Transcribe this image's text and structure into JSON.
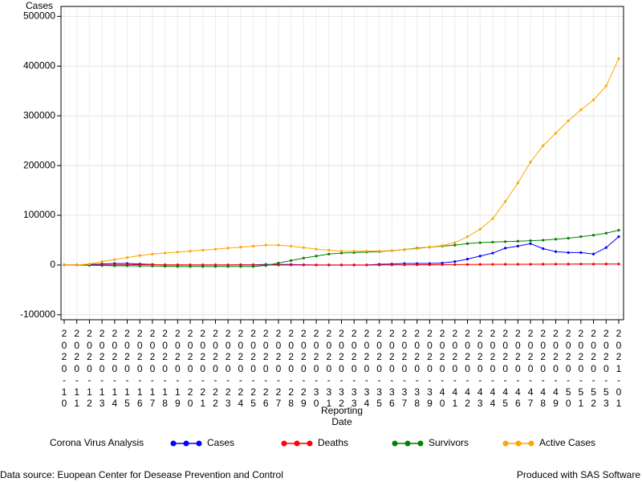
{
  "chart_data": {
    "type": "line",
    "ylabel": "Cases",
    "xlabel": "Reporting Date",
    "legend_title": "Corona Virus Analysis",
    "footnote_left": "Data source: Euopean Center for Desease Prevention and Control",
    "footnote_right": "Produced with SAS Software",
    "categories": [
      "2020-10",
      "2020-11",
      "2020-12",
      "2020-13",
      "2020-14",
      "2020-15",
      "2020-16",
      "2020-17",
      "2020-18",
      "2020-19",
      "2020-20",
      "2020-21",
      "2020-22",
      "2020-23",
      "2020-24",
      "2020-25",
      "2020-26",
      "2020-27",
      "2020-28",
      "2020-29",
      "2020-30",
      "2020-31",
      "2020-32",
      "2020-33",
      "2020-34",
      "2020-35",
      "2020-36",
      "2020-37",
      "2020-38",
      "2020-39",
      "2020-40",
      "2020-41",
      "2020-42",
      "2020-43",
      "2020-44",
      "2020-45",
      "2020-46",
      "2020-47",
      "2020-48",
      "2020-49",
      "2020-50",
      "2020-51",
      "2020-52",
      "2020-53",
      "2021-01"
    ],
    "series": [
      {
        "name": "Cases",
        "color": "#0000ff",
        "values": [
          0,
          0,
          1000,
          2000,
          3000,
          3000,
          2000,
          1000,
          0,
          0,
          0,
          0,
          0,
          0,
          500,
          500,
          1000,
          1000,
          1000,
          500,
          0,
          0,
          0,
          0,
          0,
          1500,
          2000,
          3000,
          3000,
          3000,
          4000,
          7000,
          12000,
          18000,
          24000,
          34000,
          38000,
          43000,
          33000,
          27000,
          25000,
          25000,
          22000,
          35000,
          57000
        ]
      },
      {
        "name": "Deaths",
        "color": "#ff0000",
        "values": [
          0,
          0,
          0,
          100,
          300,
          500,
          600,
          600,
          500,
          400,
          300,
          200,
          200,
          200,
          200,
          100,
          100,
          100,
          100,
          100,
          100,
          100,
          100,
          100,
          100,
          100,
          200,
          300,
          400,
          500,
          600,
          800,
          1000,
          1200,
          1400,
          1500,
          1500,
          1600,
          1700,
          1800,
          1900,
          2000,
          2000,
          2100,
          2200
        ]
      },
      {
        "name": "Survivors",
        "color": "#008000",
        "values": [
          0,
          0,
          -500,
          -1000,
          -1500,
          -1500,
          -2000,
          -2000,
          -2500,
          -3000,
          -3000,
          -3000,
          -3000,
          -3000,
          -3000,
          -3000,
          -1000,
          4000,
          9000,
          14000,
          18000,
          22000,
          24000,
          25000,
          26000,
          27000,
          29000,
          31000,
          34000,
          36000,
          38000,
          40000,
          43000,
          45000,
          46000,
          47000,
          48000,
          49000,
          50000,
          52000,
          54000,
          57000,
          60000,
          64000,
          70000
        ]
      },
      {
        "name": "Active Cases",
        "color": "#ffa500",
        "values": [
          0,
          0,
          2000,
          7000,
          11000,
          15000,
          19000,
          22000,
          24000,
          26000,
          28000,
          30000,
          32000,
          34000,
          36000,
          38000,
          40000,
          40000,
          38000,
          35000,
          32000,
          30000,
          28000,
          28000,
          28000,
          28000,
          29000,
          31000,
          33000,
          36000,
          39000,
          45000,
          57000,
          72000,
          93000,
          128000,
          165000,
          207000,
          240000,
          265000,
          290000,
          312000,
          332000,
          360000,
          415000
        ]
      }
    ],
    "ylim": [
      -110000,
      520000
    ],
    "yticks": [
      -100000,
      0,
      100000,
      200000,
      300000,
      400000,
      500000
    ],
    "grid": true
  }
}
